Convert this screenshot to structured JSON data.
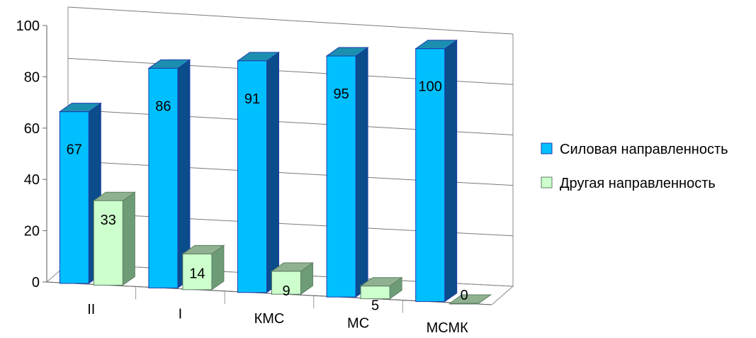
{
  "chart_data": {
    "type": "bar",
    "categories": [
      "II",
      "I",
      "КМС",
      "МС",
      "МСМК"
    ],
    "series": [
      {
        "name": "Силовая направленность",
        "values": [
          67,
          86,
          91,
          95,
          100
        ],
        "color": "#00BFFF",
        "top_color": "#1C8FB0",
        "side_color": "#0B4C8A",
        "edge_color": "#1E3DAA"
      },
      {
        "name": "Другая направленность",
        "values": [
          33,
          14,
          9,
          5,
          0
        ],
        "color": "#CCFFCC",
        "top_color": "#8FB18F",
        "side_color": "#6D9C77",
        "edge_color": "#5F7F67"
      }
    ],
    "y_ticks": [
      "0",
      "20",
      "40",
      "60",
      "80",
      "100"
    ],
    "ylim": [
      0,
      100
    ],
    "grid": true,
    "legend_position": "right"
  }
}
